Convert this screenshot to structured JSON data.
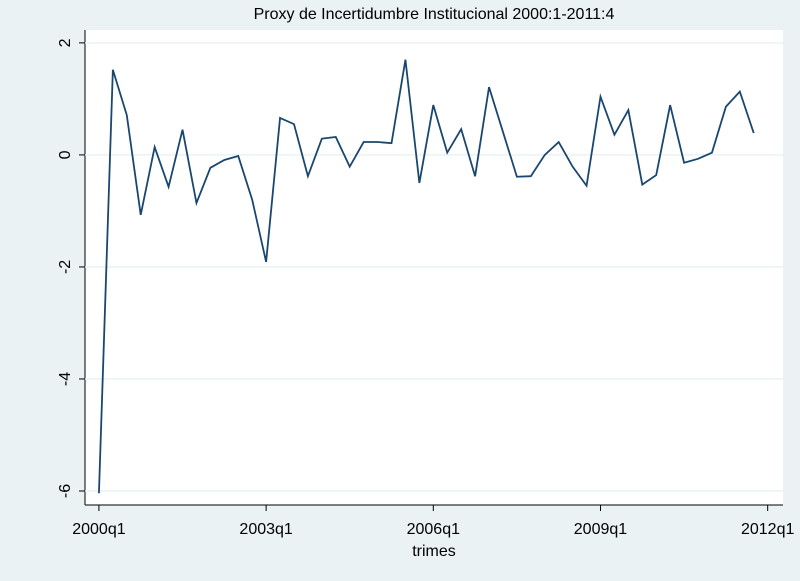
{
  "chart_data": {
    "type": "line",
    "title": "Proxy de Incertidumbre Institucional 2000:1-2011:4",
    "x_label": "trimes",
    "x": [
      160,
      161,
      162,
      163,
      164,
      165,
      166,
      167,
      168,
      169,
      170,
      171,
      172,
      173,
      174,
      175,
      176,
      177,
      178,
      179,
      180,
      181,
      182,
      183,
      184,
      185,
      186,
      187,
      188,
      189,
      190,
      191,
      192,
      193,
      194,
      195,
      196,
      197,
      198,
      199,
      200,
      201,
      202,
      203,
      204,
      205,
      206,
      207
    ],
    "series": [
      {
        "color": "#1a476f",
        "values": [
          -6.04,
          1.52,
          0.71,
          -1.07,
          0.14,
          -0.57,
          0.45,
          -0.86,
          -0.23,
          -0.09,
          -0.02,
          -0.8,
          -1.91,
          0.66,
          0.55,
          -0.38,
          0.29,
          0.32,
          -0.21,
          0.23,
          0.23,
          0.21,
          1.7,
          -0.5,
          0.89,
          0.04,
          0.46,
          -0.38,
          1.21,
          0.41,
          -0.39,
          -0.38,
          0.0,
          0.23,
          -0.21,
          -0.55,
          1.04,
          0.36,
          0.8,
          -0.53,
          -0.36,
          0.89,
          -0.14,
          -0.07,
          0.04,
          0.86,
          1.13,
          0.39
        ]
      }
    ],
    "xlim": [
      159,
      209.1
    ],
    "xticks": [
      {
        "value": 160,
        "label": "2000q1"
      },
      {
        "value": 172,
        "label": "2003q1"
      },
      {
        "value": 184,
        "label": "2006q1"
      },
      {
        "value": 196,
        "label": "2009q1"
      },
      {
        "value": 208,
        "label": "2012q1"
      }
    ],
    "ylim": [
      -6.25,
      2.23
    ],
    "yticks": [
      -6,
      -4,
      -2,
      0,
      2
    ],
    "grid": true
  }
}
